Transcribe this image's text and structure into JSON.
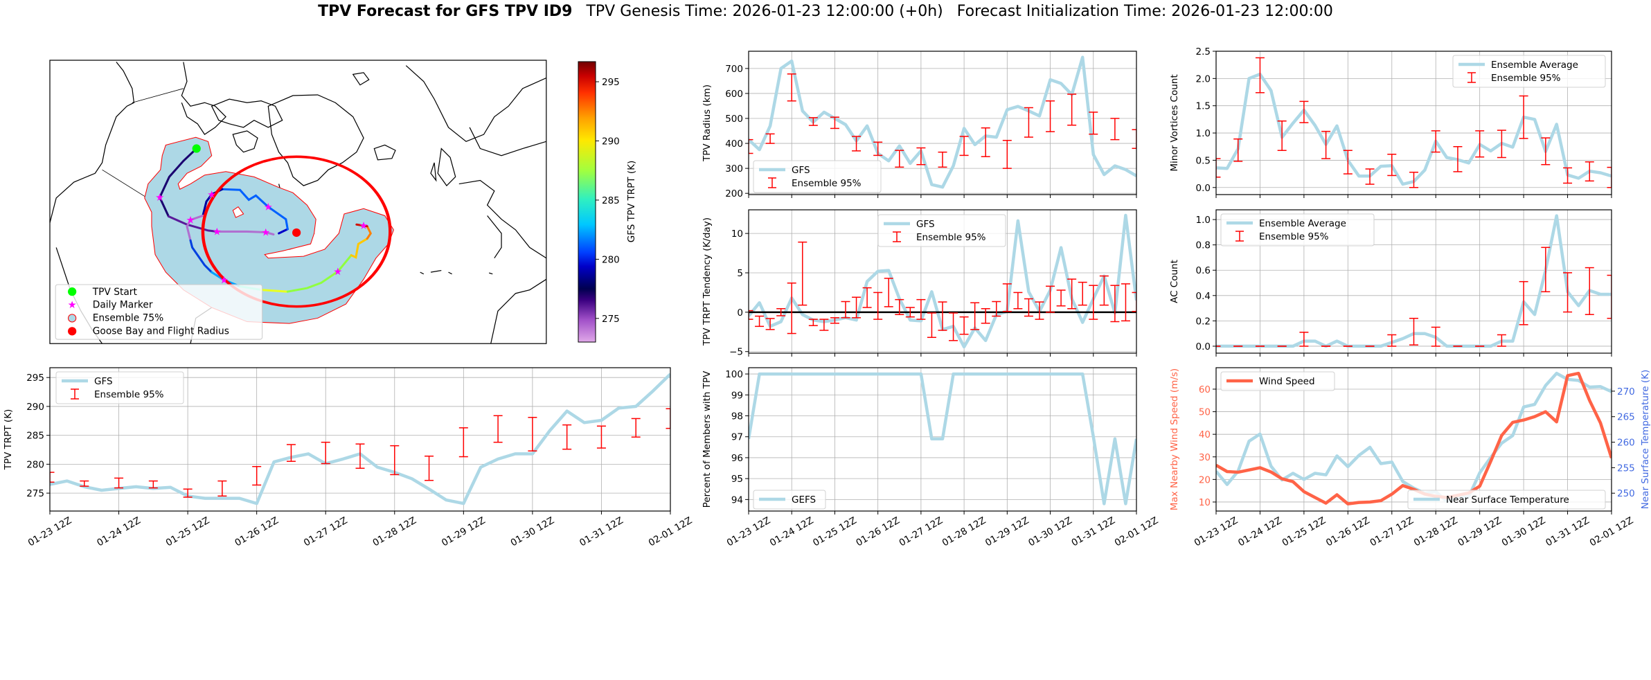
{
  "title": {
    "bold": "TPV Forecast for GFS TPV ID9",
    "genesis": "TPV Genesis Time: 2026-01-23 12:00:00 (+0h)",
    "init": "Forecast Initialization Time: 2026-01-23 12:00:00"
  },
  "colors": {
    "gfs_line": "#add8e6",
    "errorbar": "#ff0000",
    "wind_line": "#ff6347",
    "temp_axis": "#4169e1",
    "zero_line": "#000000",
    "ensemble_fill": "#add8e6",
    "flight_radius": "#ff0000",
    "tpv_start": "#00ff00",
    "daily_marker": "#ff00ff"
  },
  "map": {
    "legend": [
      "TPV Start",
      "Daily Marker",
      "Ensemble 75%",
      "Goose Bay and Flight Radius"
    ],
    "colorbar": {
      "label": "GFS TPV TRPT (K)",
      "range": [
        273.0,
        296.7
      ],
      "ticks": [
        275,
        280,
        285,
        290,
        295
      ],
      "tick_labels": [
        "275",
        "280",
        "285",
        "290",
        "295"
      ]
    }
  },
  "x_labels": [
    "01-23 12Z",
    "01-24 12Z",
    "01-25 12Z",
    "01-26 12Z",
    "01-27 12Z",
    "01-28 12Z",
    "01-29 12Z",
    "01-30 12Z",
    "01-31 12Z",
    "02-01 12Z"
  ],
  "chart_data": [
    {
      "id": "trpt",
      "type": "line",
      "x_step_hours": 6,
      "ylabel": "TPV TRPT (K)",
      "ylim": [
        271.9,
        296.7
      ],
      "yticks": [
        275,
        280,
        285,
        290,
        295
      ],
      "ytick_labels": [
        "275",
        "280",
        "285",
        "290",
        "295"
      ],
      "legend": "upper-left",
      "grid": true,
      "series": [
        {
          "name": "GFS",
          "values": [
            276.5,
            277.1,
            276.1,
            275.5,
            275.8,
            276.1,
            275.8,
            276.0,
            274.5,
            274.1,
            274.1,
            274.1,
            273.2,
            280.4,
            281.2,
            281.8,
            280.1,
            280.9,
            281.8,
            279.5,
            278.6,
            277.5,
            275.7,
            273.8,
            273.2,
            279.5,
            280.9,
            281.8,
            281.8,
            285.8,
            289.2,
            287.2,
            287.6,
            289.7,
            290.0,
            292.7,
            295.6
          ]
        }
      ],
      "errorbars": {
        "name": "Ensemble 95%",
        "x_index": [
          0,
          2,
          4,
          6,
          8,
          10,
          12,
          14,
          16,
          18,
          20,
          22,
          24,
          26,
          28,
          30,
          32,
          34,
          36
        ],
        "low": [
          276.9,
          276.2,
          275.9,
          275.9,
          274.3,
          274.5,
          276.4,
          280.5,
          280.1,
          279.3,
          278.2,
          277.2,
          281.3,
          283.8,
          282.3,
          282.6,
          282.8,
          284.7,
          286.2
        ],
        "high": [
          278.6,
          277.1,
          277.6,
          277.1,
          275.7,
          277.1,
          279.6,
          283.4,
          283.8,
          283.5,
          283.2,
          281.4,
          286.3,
          288.4,
          288.1,
          286.8,
          286.6,
          287.9,
          289.6
        ]
      }
    },
    {
      "id": "radius",
      "type": "line",
      "x_step_hours": 6,
      "ylabel": "TPV Radius (km)",
      "ylim": [
        195,
        769
      ],
      "yticks": [
        200,
        300,
        400,
        500,
        600,
        700
      ],
      "ytick_labels": [
        "200",
        "300",
        "400",
        "500",
        "600",
        "700"
      ],
      "legend": "lower-left",
      "grid": true,
      "series": [
        {
          "name": "GFS",
          "values": [
            415,
            375,
            470,
            700,
            730,
            530,
            485,
            525,
            500,
            475,
            410,
            470,
            360,
            330,
            390,
            320,
            370,
            235,
            225,
            310,
            460,
            395,
            430,
            425,
            535,
            548,
            530,
            510,
            655,
            640,
            595,
            745,
            355,
            275,
            310,
            295,
            270
          ]
        }
      ],
      "errorbars": {
        "name": "Ensemble 95%",
        "x_index": [
          0,
          2,
          4,
          6,
          8,
          10,
          12,
          14,
          16,
          18,
          20,
          22,
          24,
          26,
          28,
          30,
          32,
          34,
          36
        ],
        "low": [
          360,
          400,
          570,
          472,
          460,
          370,
          352,
          305,
          315,
          305,
          352,
          347,
          300,
          425,
          447,
          473,
          437,
          415,
          380
        ],
        "high": [
          415,
          438,
          678,
          503,
          505,
          428,
          405,
          372,
          382,
          365,
          428,
          462,
          412,
          543,
          570,
          597,
          525,
          500,
          455
        ]
      }
    },
    {
      "id": "tendency",
      "type": "line",
      "x_step_hours": 6,
      "ylabel": "TPV TRPT Tendency (K/day)",
      "ylim": [
        -5.2,
        13.0
      ],
      "yticks": [
        -5,
        0,
        5,
        10
      ],
      "ytick_labels": [
        "−5",
        "0",
        "5",
        "10"
      ],
      "legend": "upper-center",
      "grid": true,
      "hline": 0,
      "series": [
        {
          "name": "GFS",
          "values": [
            -0.5,
            1.2,
            -1.8,
            -1.2,
            1.8,
            -0.3,
            -1.0,
            -1.2,
            -1.0,
            -0.7,
            -1.0,
            3.9,
            5.2,
            5.3,
            1.7,
            -1.0,
            -1.1,
            2.6,
            -2.2,
            -1.8,
            -4.4,
            -2.0,
            -3.6,
            -0.3,
            0.1,
            11.6,
            2.6,
            0.1,
            2.8,
            8.2,
            1.7,
            -1.3,
            1.7,
            4.6,
            -0.1,
            12.3,
            1.5
          ]
        }
      ],
      "errorbars": {
        "name": "Ensemble 95%",
        "x_index": [
          0,
          1,
          2,
          3,
          4,
          5,
          6,
          7,
          8,
          9,
          10,
          11,
          12,
          13,
          14,
          15,
          16,
          17,
          18,
          19,
          20,
          21,
          22,
          23,
          24,
          25,
          26,
          27,
          28,
          29,
          30,
          31,
          32,
          33,
          34,
          35,
          36
        ],
        "low": [
          -0.9,
          -1.8,
          -2.2,
          -0.45,
          -2.7,
          0.9,
          -1.7,
          -2.3,
          -1.4,
          -0.7,
          -0.7,
          0.6,
          -0.9,
          0.7,
          -0.3,
          -0.6,
          -0.9,
          -3.2,
          -2.3,
          -3.6,
          -2.8,
          -2.2,
          -1.4,
          -0.5,
          0.1,
          0.45,
          -0.5,
          -0.9,
          0.0,
          0.8,
          0.45,
          0.9,
          -0.9,
          0.9,
          -1.2,
          -1.1,
          0.1
        ],
        "high": [
          0.2,
          -0.5,
          -0.8,
          0.45,
          3.7,
          8.9,
          -0.9,
          -0.9,
          -0.7,
          1.35,
          1.9,
          3.1,
          2.5,
          4.3,
          1.6,
          0.6,
          1.6,
          -0.1,
          1.3,
          -0.1,
          -0.6,
          1.2,
          0.45,
          1.35,
          3.6,
          2.5,
          1.7,
          1.3,
          3.3,
          2.8,
          4.2,
          3.8,
          3.4,
          4.6,
          3.4,
          3.6,
          2.5
        ]
      }
    },
    {
      "id": "percent",
      "type": "line",
      "x_step_hours": 6,
      "ylabel": "Percent of Members with TPV",
      "ylim": [
        93.45,
        100.3
      ],
      "yticks": [
        94,
        95,
        96,
        97,
        98,
        99,
        100
      ],
      "ytick_labels": [
        "94",
        "95",
        "96",
        "97",
        "98",
        "99",
        "100"
      ],
      "legend": "lower-left",
      "grid": true,
      "series": [
        {
          "name": "GEFS",
          "values": [
            96.9,
            100,
            100,
            100,
            100,
            100,
            100,
            100,
            100,
            100,
            100,
            100,
            100,
            100,
            100,
            100,
            100,
            96.9,
            96.9,
            100,
            100,
            100,
            100,
            100,
            100,
            100,
            100,
            100,
            100,
            100,
            100,
            100,
            97.0,
            93.8,
            96.9,
            93.8,
            96.9
          ]
        }
      ]
    },
    {
      "id": "minor",
      "type": "line",
      "x_step_hours": 6,
      "ylabel": "Minor Vortices Count",
      "ylim": [
        -0.13,
        2.5
      ],
      "yticks": [
        0,
        0.5,
        1.0,
        1.5,
        2.0,
        2.5
      ],
      "ytick_labels": [
        "0.0",
        "0.5",
        "1.0",
        "1.5",
        "2.0",
        "2.5"
      ],
      "legend": "upper-right",
      "grid": true,
      "series": [
        {
          "name": "Ensemble Average",
          "values": [
            0.36,
            0.35,
            0.71,
            2.0,
            2.08,
            1.78,
            0.92,
            1.18,
            1.42,
            1.14,
            0.79,
            1.13,
            0.5,
            0.21,
            0.21,
            0.39,
            0.4,
            0.06,
            0.11,
            0.32,
            0.85,
            0.55,
            0.51,
            0.45,
            0.79,
            0.67,
            0.81,
            0.74,
            1.29,
            1.25,
            0.66,
            1.16,
            0.23,
            0.17,
            0.3,
            0.27,
            0.21
          ]
        }
      ],
      "errorbars": {
        "name": "Ensemble 95%",
        "x_index": [
          0,
          2,
          4,
          6,
          8,
          10,
          12,
          14,
          16,
          18,
          20,
          22,
          24,
          26,
          28,
          30,
          32,
          34,
          36
        ],
        "low": [
          0.19,
          0.48,
          1.74,
          0.68,
          1.19,
          0.53,
          0.25,
          0.06,
          0.22,
          0.0,
          0.65,
          0.29,
          0.56,
          0.55,
          0.9,
          0.42,
          0.08,
          0.12,
          0.0
        ],
        "high": [
          0.53,
          0.89,
          2.38,
          1.22,
          1.58,
          1.03,
          0.68,
          0.34,
          0.61,
          0.28,
          1.04,
          0.75,
          1.04,
          1.05,
          1.68,
          0.91,
          0.36,
          0.47,
          0.37
        ]
      }
    },
    {
      "id": "ac",
      "type": "line",
      "x_step_hours": 6,
      "ylabel": "AC Count",
      "ylim": [
        -0.055,
        1.077
      ],
      "yticks": [
        0,
        0.2,
        0.4,
        0.6,
        0.8,
        1.0
      ],
      "ytick_labels": [
        "0.0",
        "0.2",
        "0.4",
        "0.6",
        "0.8",
        "1.0"
      ],
      "legend": "upper-left",
      "grid": true,
      "series": [
        {
          "name": "Ensemble Average",
          "values": [
            0,
            0,
            0,
            0,
            0,
            0,
            0,
            0,
            0.04,
            0.04,
            0,
            0.04,
            0,
            0,
            0,
            0,
            0.03,
            0.06,
            0.1,
            0.1,
            0.07,
            0,
            0,
            0,
            0,
            0,
            0.04,
            0.04,
            0.35,
            0.25,
            0.6,
            1.03,
            0.43,
            0.32,
            0.44,
            0.41,
            0.41
          ]
        }
      ],
      "errorbars": {
        "name": "Ensemble 95%",
        "x_index": [
          0,
          2,
          4,
          6,
          8,
          10,
          12,
          14,
          16,
          18,
          20,
          22,
          24,
          26,
          28,
          30,
          32,
          34,
          36
        ],
        "low": [
          0,
          0,
          0,
          0,
          0,
          0,
          0,
          0,
          0,
          0.01,
          0,
          0,
          0,
          0,
          0.17,
          0.43,
          0.27,
          0.25,
          0.22
        ],
        "high": [
          0,
          0,
          0,
          0,
          0.11,
          0,
          0,
          0,
          0.09,
          0.22,
          0.15,
          0,
          0,
          0.09,
          0.51,
          0.78,
          0.58,
          0.62,
          0.56
        ]
      }
    },
    {
      "id": "wind",
      "type": "line",
      "x_step_hours": 6,
      "ylabel": "Max Nearby Wind Speed (m/s)",
      "ylim": [
        6.0,
        69.5
      ],
      "yticks": [
        10,
        20,
        30,
        40,
        50,
        60
      ],
      "ytick_labels": [
        "10",
        "20",
        "30",
        "40",
        "50",
        "60"
      ],
      "ylabel_right": "Near Surface Temperature (K)",
      "ylim_right": [
        246.5,
        274.6
      ],
      "yticks_right": [
        250,
        255,
        260,
        265,
        270
      ],
      "ytick_labels_right": [
        "250",
        "255",
        "260",
        "265",
        "270"
      ],
      "legend": "upper-left",
      "legend_right": "lower-right",
      "grid": true,
      "series": [
        {
          "name": "Wind Speed",
          "axis": "left",
          "values": [
            26.3,
            23.5,
            23.2,
            24.2,
            25.2,
            23.3,
            20.3,
            19.0,
            14.6,
            12.0,
            9.5,
            13.2,
            9.2,
            9.8,
            10.0,
            10.6,
            13.5,
            17.3,
            15.6,
            13.5,
            12.5,
            12.0,
            13.0,
            14.0,
            17.0,
            28.0,
            39.5,
            45.3,
            46.3,
            47.8,
            50.0,
            45.5,
            66.0,
            67.0,
            55.0,
            45.0,
            29.5
          ]
        },
        {
          "name": "Near Surface Temperature",
          "axis": "right",
          "values": [
            254.3,
            251.7,
            254.3,
            260.2,
            261.6,
            255.3,
            252.6,
            253.9,
            252.7,
            253.9,
            253.6,
            257.3,
            255.2,
            257.4,
            259.0,
            255.8,
            256.1,
            252.3,
            251.0,
            250.0,
            250.3,
            248.4,
            249.1,
            249.3,
            254.0,
            257.0,
            259.8,
            261.3,
            266.9,
            267.4,
            271.1,
            273.5,
            272.3,
            272.1,
            270.8,
            270.9,
            269.9
          ]
        }
      ]
    }
  ]
}
